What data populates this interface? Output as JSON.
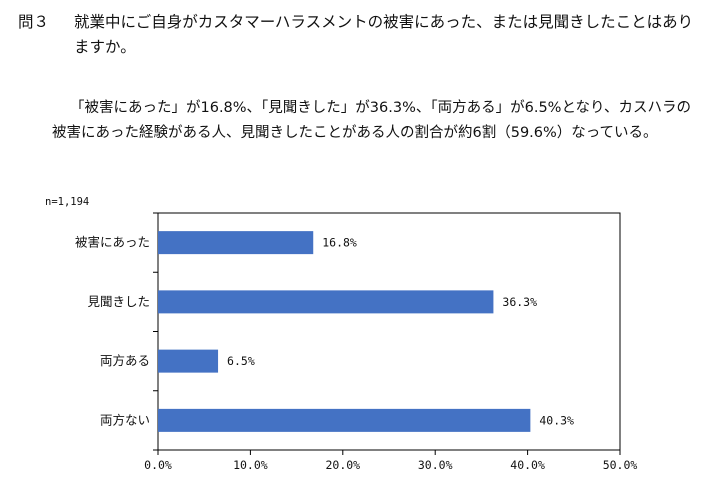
{
  "question": {
    "label": "問３",
    "text": "就業中にご自身がカスタマーハラスメントの被害にあった、または見聞きしたことはありますか。"
  },
  "summary": "「被害にあった」が16.8%、「見聞きした」が36.3%、「両方ある」が6.5%となり、カスハラの被害にあった経験がある人、見聞きしたことがある人の割合が約6割（59.6%）なっている。",
  "n_label": "n=1,194",
  "colors": {
    "bar": "#4472C4",
    "frame": "#000000"
  },
  "chart_data": {
    "type": "bar",
    "orientation": "horizontal",
    "categories": [
      "被害にあった",
      "見聞きした",
      "両方ある",
      "両方ない"
    ],
    "values": [
      16.8,
      36.3,
      6.5,
      40.3
    ],
    "value_labels": [
      "16.8%",
      "36.3%",
      "6.5%",
      "40.3%"
    ],
    "x_ticks": [
      "0.0%",
      "10.0%",
      "20.0%",
      "30.0%",
      "40.0%",
      "50.0%"
    ],
    "xlim": [
      0,
      50
    ],
    "grid": false
  }
}
